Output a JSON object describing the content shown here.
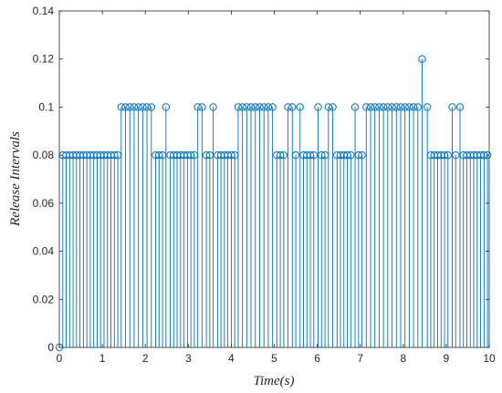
{
  "chart_data": {
    "type": "stem",
    "title": "",
    "xlabel": "Time(s)",
    "ylabel": "Release Intervals",
    "xlim": [
      0,
      10
    ],
    "ylim": [
      0,
      0.14
    ],
    "xticks": [
      "0",
      "1",
      "2",
      "3",
      "4",
      "5",
      "6",
      "7",
      "8",
      "9",
      "10"
    ],
    "yticks": [
      "0",
      "0.02",
      "0.04",
      "0.06",
      "0.08",
      "0.1",
      "0.12",
      "0.14"
    ],
    "grid": false,
    "color": "#0072BD",
    "x": [
      0,
      0.08,
      0.16,
      0.24,
      0.32,
      0.4,
      0.48,
      0.56,
      0.64,
      0.72,
      0.8,
      0.88,
      0.96,
      1.04,
      1.12,
      1.2,
      1.28,
      1.36,
      1.44,
      1.54,
      1.64,
      1.74,
      1.84,
      1.94,
      2.04,
      2.14,
      2.24,
      2.32,
      2.4,
      2.48,
      2.58,
      2.66,
      2.74,
      2.82,
      2.9,
      2.98,
      3.06,
      3.14,
      3.22,
      3.32,
      3.42,
      3.5,
      3.58,
      3.68,
      3.76,
      3.84,
      3.92,
      4.0,
      4.08,
      4.16,
      4.26,
      4.36,
      4.46,
      4.56,
      4.66,
      4.76,
      4.86,
      4.96,
      5.06,
      5.14,
      5.22,
      5.32,
      5.42,
      5.5,
      5.6,
      5.68,
      5.76,
      5.84,
      5.92,
      6.02,
      6.1,
      6.18,
      6.26,
      6.36,
      6.46,
      6.54,
      6.62,
      6.7,
      6.78,
      6.88,
      6.96,
      7.04,
      7.14,
      7.24,
      7.34,
      7.44,
      7.54,
      7.64,
      7.74,
      7.84,
      7.94,
      8.04,
      8.14,
      8.24,
      8.34,
      8.44,
      8.56,
      8.64,
      8.72,
      8.8,
      8.88,
      8.96,
      9.04,
      9.14,
      9.22,
      9.32,
      9.4,
      9.48,
      9.56,
      9.64,
      9.72,
      9.8,
      9.88,
      9.96
    ],
    "y": [
      0,
      0.08,
      0.08,
      0.08,
      0.08,
      0.08,
      0.08,
      0.08,
      0.08,
      0.08,
      0.08,
      0.08,
      0.08,
      0.08,
      0.08,
      0.08,
      0.08,
      0.08,
      0.1,
      0.1,
      0.1,
      0.1,
      0.1,
      0.1,
      0.1,
      0.1,
      0.08,
      0.08,
      0.08,
      0.1,
      0.08,
      0.08,
      0.08,
      0.08,
      0.08,
      0.08,
      0.08,
      0.08,
      0.1,
      0.1,
      0.08,
      0.08,
      0.1,
      0.08,
      0.08,
      0.08,
      0.08,
      0.08,
      0.08,
      0.1,
      0.1,
      0.1,
      0.1,
      0.1,
      0.1,
      0.1,
      0.1,
      0.1,
      0.08,
      0.08,
      0.08,
      0.1,
      0.1,
      0.08,
      0.1,
      0.08,
      0.08,
      0.08,
      0.08,
      0.1,
      0.08,
      0.08,
      0.1,
      0.1,
      0.08,
      0.08,
      0.08,
      0.08,
      0.08,
      0.1,
      0.08,
      0.08,
      0.1,
      0.1,
      0.1,
      0.1,
      0.1,
      0.1,
      0.1,
      0.1,
      0.1,
      0.1,
      0.1,
      0.1,
      0.1,
      0.12,
      0.1,
      0.08,
      0.08,
      0.08,
      0.08,
      0.08,
      0.08,
      0.1,
      0.08,
      0.1,
      0.08,
      0.08,
      0.08,
      0.08,
      0.08,
      0.08,
      0.08,
      0.08
    ]
  }
}
